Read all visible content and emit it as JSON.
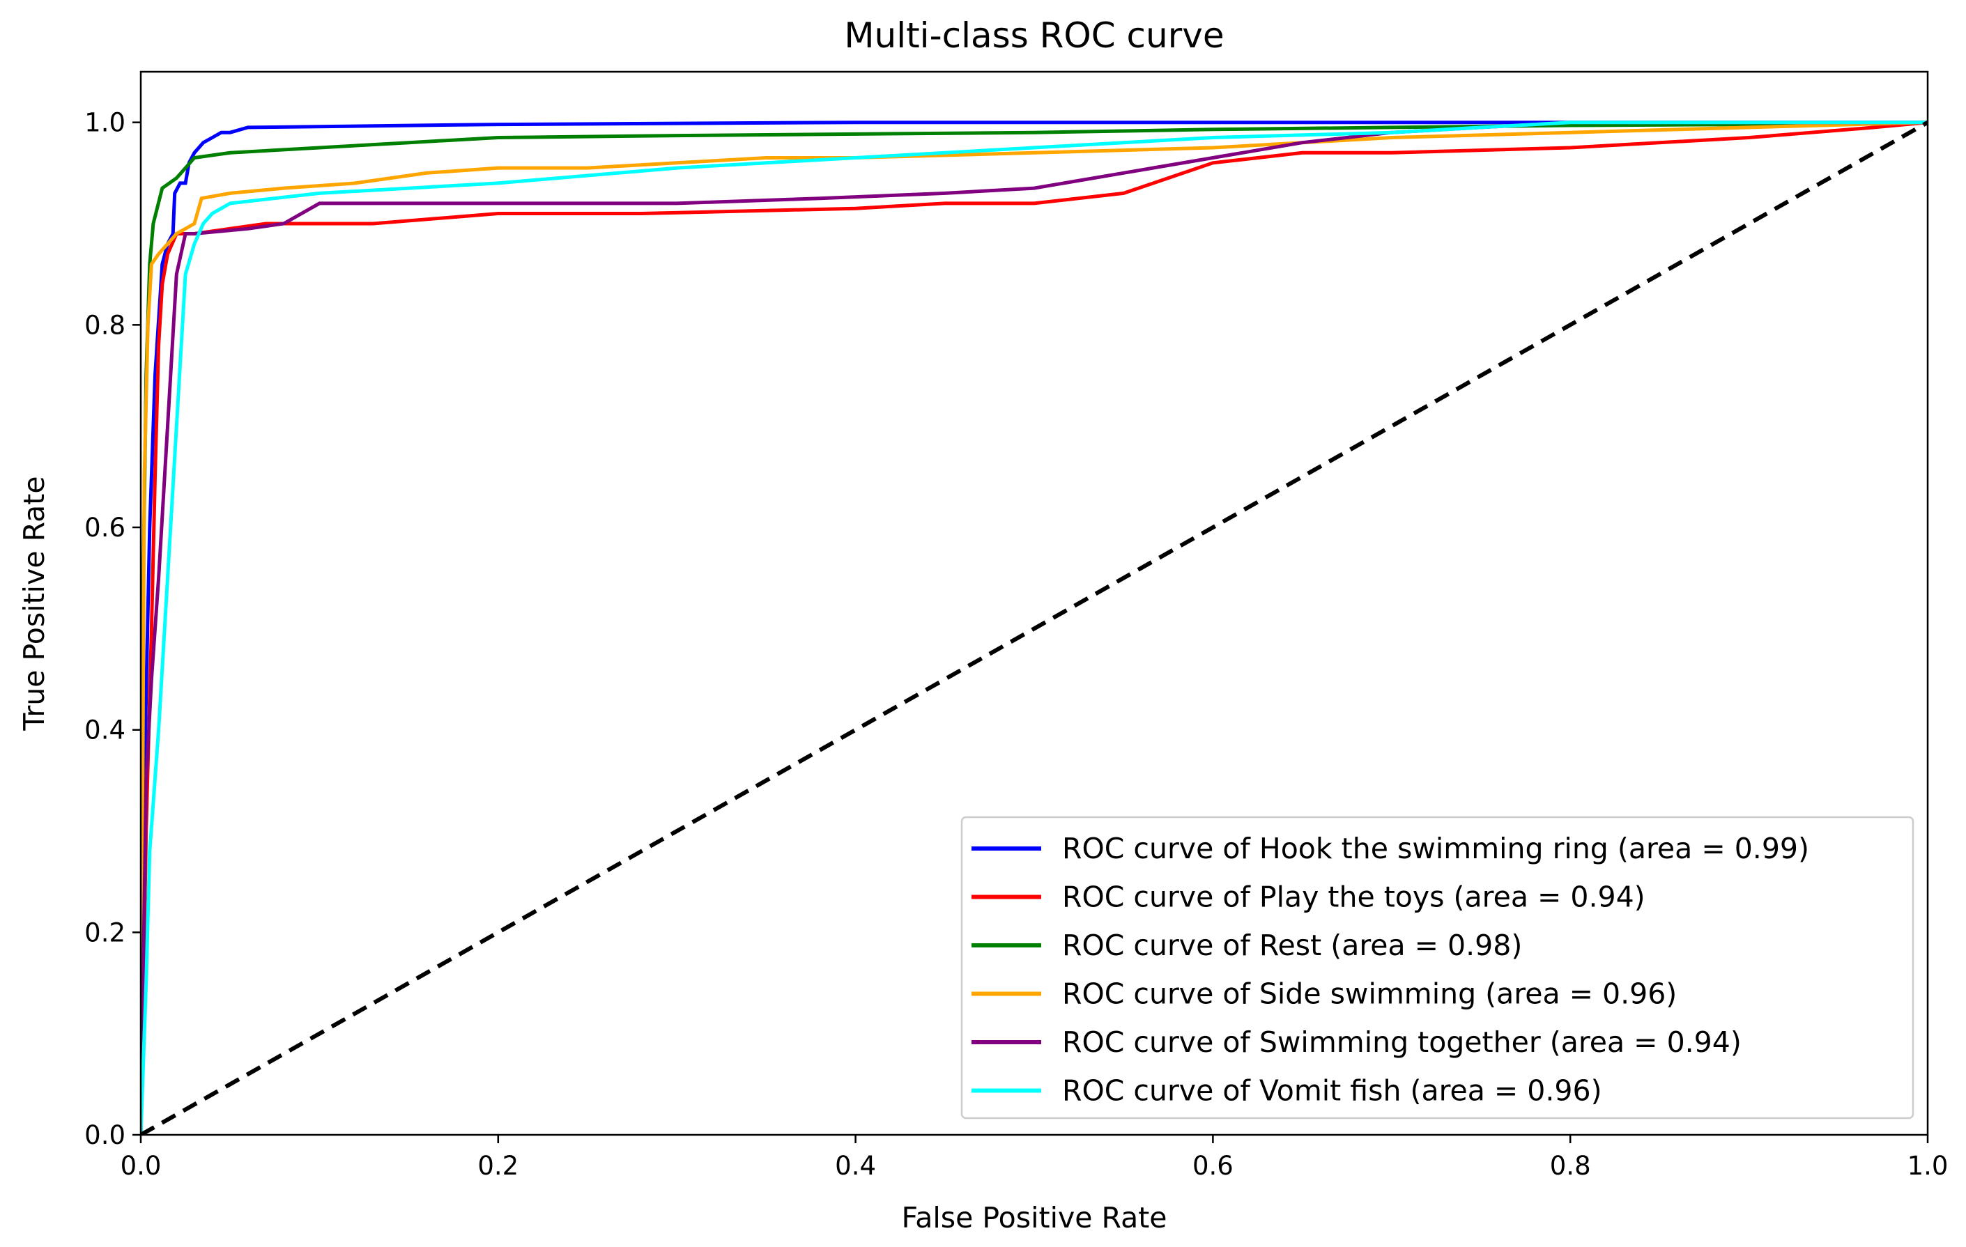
{
  "chart_data": {
    "type": "line",
    "title": "Multi-class ROC curve",
    "xlabel": "False Positive Rate",
    "ylabel": "True Positive Rate",
    "xlim": [
      0.0,
      1.0
    ],
    "ylim": [
      0.0,
      1.05
    ],
    "xticks": [
      "0.0",
      "0.2",
      "0.4",
      "0.6",
      "0.8",
      "1.0"
    ],
    "yticks": [
      "0.0",
      "0.2",
      "0.4",
      "0.6",
      "0.8",
      "1.0"
    ],
    "xtick_values": [
      0.0,
      0.2,
      0.4,
      0.6,
      0.8,
      1.0
    ],
    "ytick_values": [
      0.0,
      0.2,
      0.4,
      0.6,
      0.8,
      1.0
    ],
    "grid": false,
    "legend_position": "lower-right",
    "baseline": {
      "name": "chance",
      "color": "#000000",
      "dash": true,
      "x": [
        0,
        1
      ],
      "y": [
        0,
        1
      ]
    },
    "series": [
      {
        "name": "ROC curve of Hook the swimming ring (area = 0.99)",
        "color": "#0000ff",
        "x": [
          0,
          0.002,
          0.005,
          0.008,
          0.012,
          0.015,
          0.018,
          0.019,
          0.022,
          0.025,
          0.027,
          0.03,
          0.035,
          0.04,
          0.045,
          0.05,
          0.06,
          0.2,
          0.4,
          0.55,
          0.7,
          1.0
        ],
        "y": [
          0,
          0.35,
          0.6,
          0.75,
          0.86,
          0.88,
          0.89,
          0.93,
          0.94,
          0.94,
          0.96,
          0.97,
          0.98,
          0.985,
          0.99,
          0.99,
          0.995,
          0.998,
          1.0,
          1.0,
          1.0,
          1.0
        ]
      },
      {
        "name": "ROC curve of Play the toys (area = 0.94)",
        "color": "#ff0000",
        "x": [
          0,
          0.003,
          0.006,
          0.008,
          0.01,
          0.012,
          0.015,
          0.02,
          0.03,
          0.07,
          0.13,
          0.2,
          0.28,
          0.4,
          0.45,
          0.5,
          0.55,
          0.6,
          0.65,
          0.7,
          0.8,
          0.9,
          0.97,
          1.0
        ],
        "y": [
          0,
          0.3,
          0.5,
          0.65,
          0.78,
          0.84,
          0.87,
          0.89,
          0.89,
          0.9,
          0.9,
          0.91,
          0.91,
          0.915,
          0.92,
          0.92,
          0.93,
          0.96,
          0.97,
          0.97,
          0.975,
          0.985,
          0.995,
          1.0
        ]
      },
      {
        "name": "ROC curve of Rest (area = 0.98)",
        "color": "#008000",
        "x": [
          0,
          0.001,
          0.003,
          0.005,
          0.007,
          0.012,
          0.02,
          0.025,
          0.03,
          0.05,
          0.1,
          0.15,
          0.2,
          0.3,
          0.5,
          0.6,
          0.7,
          0.8,
          0.9,
          1.0
        ],
        "y": [
          0,
          0.5,
          0.75,
          0.86,
          0.9,
          0.935,
          0.945,
          0.955,
          0.965,
          0.97,
          0.975,
          0.98,
          0.985,
          0.987,
          0.99,
          0.993,
          0.995,
          0.997,
          0.998,
          1.0
        ]
      },
      {
        "name": "ROC curve of Side swimming (area = 0.96)",
        "color": "#ffa500",
        "x": [
          0,
          0.002,
          0.004,
          0.006,
          0.01,
          0.015,
          0.02,
          0.025,
          0.03,
          0.034,
          0.05,
          0.08,
          0.12,
          0.16,
          0.2,
          0.25,
          0.3,
          0.35,
          0.4,
          0.5,
          0.6,
          0.7,
          0.8,
          0.9,
          1.0
        ],
        "y": [
          0,
          0.65,
          0.8,
          0.86,
          0.87,
          0.88,
          0.89,
          0.895,
          0.9,
          0.925,
          0.93,
          0.935,
          0.94,
          0.95,
          0.955,
          0.955,
          0.96,
          0.965,
          0.965,
          0.97,
          0.975,
          0.985,
          0.99,
          0.995,
          1.0
        ]
      },
      {
        "name": "ROC curve of Swimming together (area = 0.94)",
        "color": "#800080",
        "x": [
          0,
          0.003,
          0.006,
          0.01,
          0.015,
          0.02,
          0.025,
          0.03,
          0.06,
          0.08,
          0.1,
          0.2,
          0.3,
          0.38,
          0.45,
          0.5,
          0.55,
          0.6,
          0.65,
          0.7,
          0.75,
          0.8,
          1.0
        ],
        "y": [
          0,
          0.35,
          0.45,
          0.55,
          0.7,
          0.85,
          0.89,
          0.89,
          0.895,
          0.9,
          0.92,
          0.92,
          0.92,
          0.925,
          0.93,
          0.935,
          0.95,
          0.965,
          0.98,
          0.99,
          0.995,
          1.0,
          1.0
        ]
      },
      {
        "name": "ROC curve of Vomit fish (area = 0.96)",
        "color": "#00ffff",
        "x": [
          0,
          0.003,
          0.005,
          0.01,
          0.015,
          0.02,
          0.025,
          0.03,
          0.035,
          0.04,
          0.05,
          0.1,
          0.2,
          0.3,
          0.4,
          0.5,
          0.6,
          0.7,
          0.75,
          0.8,
          1.0
        ],
        "y": [
          0,
          0.15,
          0.28,
          0.4,
          0.55,
          0.7,
          0.85,
          0.88,
          0.9,
          0.91,
          0.92,
          0.93,
          0.94,
          0.955,
          0.965,
          0.975,
          0.985,
          0.99,
          0.995,
          1.0,
          1.0
        ]
      }
    ]
  }
}
